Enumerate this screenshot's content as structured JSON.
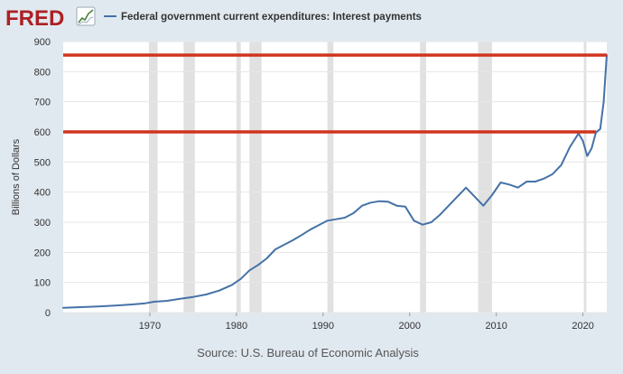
{
  "header": {
    "logo_text": "FRED",
    "legend_label": "Federal government current expenditures: Interest payments"
  },
  "source_text": "Source: U.S. Bureau of Economic Analysis",
  "colors": {
    "background": "#e1e9f0",
    "plot_background": "#ffffff",
    "series_line": "#4572a7",
    "recession_band": "#e1e1e1",
    "annotation_line": "#d0341d",
    "logo_red": "#ad2024",
    "text": "#333333"
  },
  "chart_data": {
    "type": "line",
    "title": "Federal government current expenditures: Interest payments",
    "ylabel": "Billions of Dollars",
    "xlabel": "",
    "xlim": [
      1960.0,
      2022.75
    ],
    "ylim": [
      0,
      900
    ],
    "yticks": [
      0,
      100,
      200,
      300,
      400,
      500,
      600,
      700,
      800,
      900
    ],
    "xticks": [
      1970,
      1980,
      1990,
      2000,
      2010,
      2020
    ],
    "grid": true,
    "legend": "top-left",
    "recessions": [
      [
        1969.9,
        1970.9
      ],
      [
        1973.9,
        1975.2
      ],
      [
        1980.0,
        1980.5
      ],
      [
        1981.5,
        1982.9
      ],
      [
        1990.5,
        1991.2
      ],
      [
        2001.2,
        2001.9
      ],
      [
        2007.9,
        2009.5
      ],
      [
        2020.1,
        2020.4
      ]
    ],
    "hlines": [
      {
        "y": 855,
        "x_from": 1960.0,
        "x_to": 2022.75
      },
      {
        "y": 600,
        "x_from": 1960.0,
        "x_to": 2021.5
      }
    ],
    "series": [
      {
        "name": "Federal government current expenditures: Interest payments",
        "x": [
          1960.0,
          1962.0,
          1964.0,
          1966.0,
          1968.0,
          1969.5,
          1970.5,
          1972.0,
          1973.5,
          1975.0,
          1976.5,
          1978.0,
          1979.5,
          1980.5,
          1981.5,
          1982.5,
          1983.5,
          1984.5,
          1985.5,
          1986.5,
          1987.5,
          1988.5,
          1989.5,
          1990.5,
          1991.5,
          1992.5,
          1993.5,
          1994.5,
          1995.5,
          1996.5,
          1997.5,
          1998.5,
          1999.5,
          2000.5,
          2001.5,
          2002.5,
          2003.5,
          2004.5,
          2005.5,
          2006.5,
          2007.5,
          2008.5,
          2009.5,
          2010.5,
          2011.5,
          2012.5,
          2013.5,
          2014.5,
          2015.5,
          2016.5,
          2017.5,
          2018.5,
          2019.5,
          2020.0,
          2020.5,
          2021.0,
          2021.5,
          2022.0,
          2022.4,
          2022.75
        ],
        "values": [
          16,
          18,
          20,
          23,
          27,
          31,
          36,
          39,
          46,
          52,
          60,
          73,
          92,
          112,
          140,
          158,
          180,
          210,
          225,
          240,
          257,
          275,
          290,
          305,
          310,
          315,
          330,
          355,
          365,
          370,
          368,
          355,
          352,
          305,
          292,
          300,
          325,
          355,
          385,
          415,
          385,
          355,
          390,
          432,
          425,
          415,
          435,
          435,
          445,
          460,
          490,
          550,
          595,
          570,
          520,
          545,
          598,
          610,
          700,
          855
        ]
      }
    ]
  }
}
